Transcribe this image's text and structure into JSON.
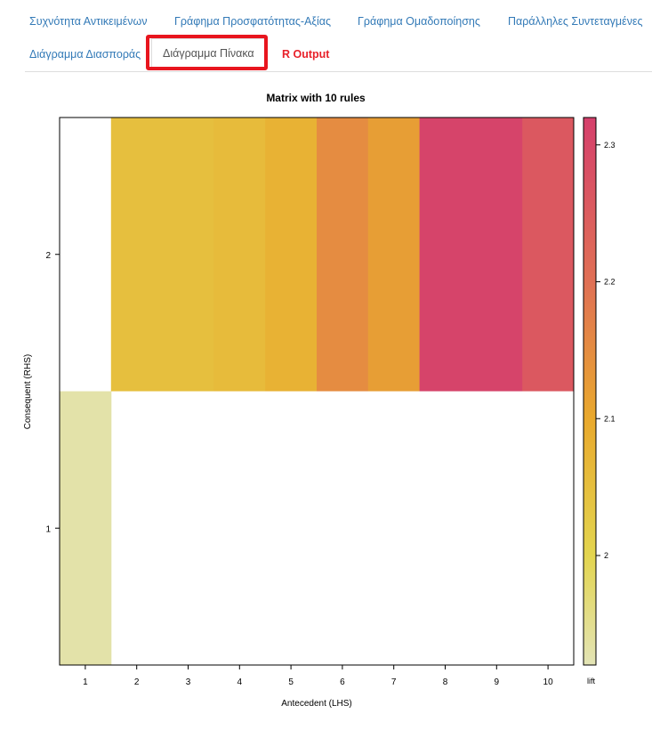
{
  "tabs": [
    {
      "label": "Συχνότητα Αντικειμένων"
    },
    {
      "label": "Γράφημα Προσφατότητας-Αξίας"
    },
    {
      "label": "Γράφημα Ομαδοποίησης"
    },
    {
      "label": "Παράλληλες Συντεταγμένες"
    },
    {
      "label": "Διάγραμμα Διασποράς"
    },
    {
      "label": "Διάγραμμα Πίνακα"
    },
    {
      "label": "R Output"
    }
  ],
  "active_tab": "Διάγραμμα Πίνακα",
  "colors": {
    "link": "#337ab7",
    "routput": "#e8212a",
    "highlight": "#e8151e"
  },
  "chart_data": {
    "type": "heatmap",
    "title": "Matrix with 10 rules",
    "xlabel": "Antecedent (LHS)",
    "ylabel": "Consequent (RHS)",
    "x_categories": [
      "1",
      "2",
      "3",
      "4",
      "5",
      "6",
      "7",
      "8",
      "9",
      "10"
    ],
    "y_categories": [
      "1",
      "2"
    ],
    "cells": [
      {
        "x": 1,
        "y": 1,
        "lift": 1.93
      },
      {
        "x": 2,
        "y": 2,
        "lift": 2.05
      },
      {
        "x": 3,
        "y": 2,
        "lift": 2.05
      },
      {
        "x": 4,
        "y": 2,
        "lift": 2.06
      },
      {
        "x": 5,
        "y": 2,
        "lift": 2.08
      },
      {
        "x": 6,
        "y": 2,
        "lift": 2.15
      },
      {
        "x": 7,
        "y": 2,
        "lift": 2.12
      },
      {
        "x": 8,
        "y": 2,
        "lift": 2.31
      },
      {
        "x": 9,
        "y": 2,
        "lift": 2.31
      },
      {
        "x": 10,
        "y": 2,
        "lift": 2.26
      }
    ],
    "colorbar": {
      "label": "lift",
      "ticks": [
        "2",
        "2.1",
        "2.2",
        "2.3"
      ],
      "range": [
        1.92,
        2.32
      ]
    },
    "grid": false
  }
}
